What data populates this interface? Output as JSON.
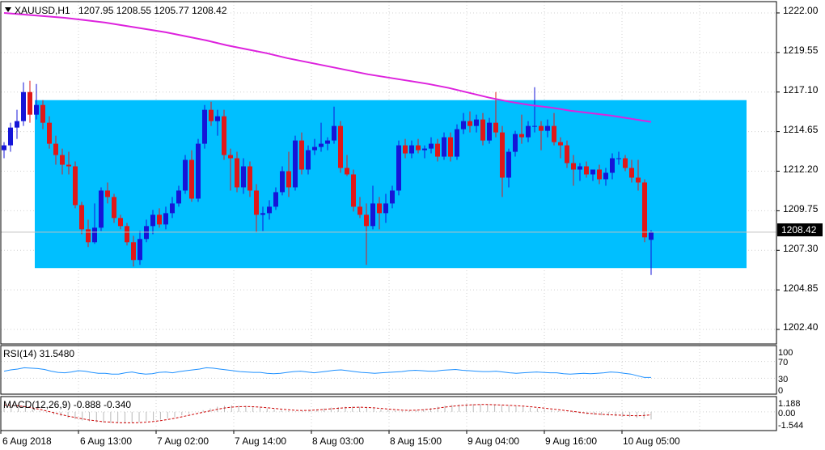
{
  "header": {
    "symbol": "XAUUSD,H1",
    "ohlc": "1207.95 1208.55 1205.77 1208.42"
  },
  "price_axis": {
    "labels": [
      "1222.00",
      "1219.55",
      "1217.10",
      "1214.65",
      "1212.20",
      "1209.75",
      "1207.30",
      "1204.85",
      "1202.40"
    ],
    "current_price_label": "1208.42"
  },
  "time_axis": {
    "labels": [
      "6 Aug 2018",
      "6 Aug 13:00",
      "7 Aug 02:00",
      "7 Aug 14:00",
      "8 Aug 03:00",
      "8 Aug 15:00",
      "9 Aug 04:00",
      "9 Aug 16:00",
      "10 Aug 05:00"
    ]
  },
  "rsi": {
    "title": "RSI(14) 31.5480",
    "levels": [
      "100",
      "70",
      "30",
      "0"
    ]
  },
  "macd": {
    "title": "MACD(12,26,9) -0.888 -0.340",
    "levels": [
      "1.188",
      "0.00",
      "-1.544"
    ]
  },
  "colors": {
    "bull": "#1515d8",
    "bear": "#e01818",
    "sma": "#dd22dd",
    "range_box": "#00bfff",
    "indicator_line": "#1e90ff",
    "macd_signal": "#cc0000",
    "grid": "#d0d0d0"
  },
  "chart_data": [
    {
      "type": "candlestick",
      "symbol": "XAUUSD",
      "timeframe": "H1",
      "y_range": [
        1201.5,
        1222.7
      ],
      "candles": [
        {
          "o": 1213.5,
          "h": 1214.0,
          "l": 1213.0,
          "c": 1213.8
        },
        {
          "o": 1213.8,
          "h": 1215.2,
          "l": 1213.4,
          "c": 1214.9
        },
        {
          "o": 1214.9,
          "h": 1216.0,
          "l": 1214.2,
          "c": 1215.3
        },
        {
          "o": 1215.3,
          "h": 1217.7,
          "l": 1215.0,
          "c": 1217.1
        },
        {
          "o": 1217.1,
          "h": 1217.8,
          "l": 1215.2,
          "c": 1215.7
        },
        {
          "o": 1215.7,
          "h": 1217.6,
          "l": 1215.4,
          "c": 1216.3
        },
        {
          "o": 1216.3,
          "h": 1216.6,
          "l": 1214.8,
          "c": 1215.2
        },
        {
          "o": 1215.2,
          "h": 1215.6,
          "l": 1213.6,
          "c": 1213.9
        },
        {
          "o": 1213.9,
          "h": 1214.4,
          "l": 1212.6,
          "c": 1213.2
        },
        {
          "o": 1213.2,
          "h": 1213.6,
          "l": 1212.0,
          "c": 1212.6
        },
        {
          "o": 1212.6,
          "h": 1213.4,
          "l": 1212.0,
          "c": 1212.5
        },
        {
          "o": 1212.5,
          "h": 1212.8,
          "l": 1209.9,
          "c": 1210.1
        },
        {
          "o": 1210.1,
          "h": 1210.3,
          "l": 1208.3,
          "c": 1208.6
        },
        {
          "o": 1208.6,
          "h": 1209.2,
          "l": 1207.5,
          "c": 1207.8
        },
        {
          "o": 1207.8,
          "h": 1210.2,
          "l": 1207.7,
          "c": 1208.7
        },
        {
          "o": 1208.7,
          "h": 1211.2,
          "l": 1208.5,
          "c": 1211.0
        },
        {
          "o": 1211.0,
          "h": 1211.5,
          "l": 1210.2,
          "c": 1210.6
        },
        {
          "o": 1210.6,
          "h": 1210.8,
          "l": 1209.0,
          "c": 1209.3
        },
        {
          "o": 1209.3,
          "h": 1209.5,
          "l": 1208.6,
          "c": 1208.8
        },
        {
          "o": 1208.8,
          "h": 1209.0,
          "l": 1207.6,
          "c": 1207.8
        },
        {
          "o": 1207.8,
          "h": 1208.2,
          "l": 1206.3,
          "c": 1206.7
        },
        {
          "o": 1206.7,
          "h": 1208.5,
          "l": 1206.4,
          "c": 1208.0
        },
        {
          "o": 1208.0,
          "h": 1209.2,
          "l": 1207.8,
          "c": 1208.8
        },
        {
          "o": 1208.8,
          "h": 1209.8,
          "l": 1208.3,
          "c": 1209.5
        },
        {
          "o": 1209.5,
          "h": 1209.9,
          "l": 1208.7,
          "c": 1208.9
        },
        {
          "o": 1208.9,
          "h": 1210.0,
          "l": 1208.6,
          "c": 1209.6
        },
        {
          "o": 1209.6,
          "h": 1210.6,
          "l": 1209.3,
          "c": 1210.2
        },
        {
          "o": 1210.2,
          "h": 1211.3,
          "l": 1210.0,
          "c": 1211.0
        },
        {
          "o": 1211.0,
          "h": 1213.2,
          "l": 1210.8,
          "c": 1212.9
        },
        {
          "o": 1212.9,
          "h": 1213.5,
          "l": 1210.3,
          "c": 1210.5
        },
        {
          "o": 1210.5,
          "h": 1214.2,
          "l": 1210.3,
          "c": 1213.9
        },
        {
          "o": 1213.9,
          "h": 1216.3,
          "l": 1213.6,
          "c": 1216.0
        },
        {
          "o": 1216.0,
          "h": 1216.5,
          "l": 1215.0,
          "c": 1215.3
        },
        {
          "o": 1215.3,
          "h": 1216.0,
          "l": 1214.4,
          "c": 1215.6
        },
        {
          "o": 1215.6,
          "h": 1216.0,
          "l": 1212.9,
          "c": 1213.2
        },
        {
          "o": 1213.2,
          "h": 1213.6,
          "l": 1211.0,
          "c": 1213.0
        },
        {
          "o": 1213.0,
          "h": 1213.4,
          "l": 1210.9,
          "c": 1211.2
        },
        {
          "o": 1211.2,
          "h": 1213.0,
          "l": 1210.8,
          "c": 1212.5
        },
        {
          "o": 1212.5,
          "h": 1212.8,
          "l": 1210.6,
          "c": 1211.0
        },
        {
          "o": 1211.0,
          "h": 1211.4,
          "l": 1208.4,
          "c": 1209.5
        },
        {
          "o": 1209.5,
          "h": 1210.0,
          "l": 1208.5,
          "c": 1209.6
        },
        {
          "o": 1209.6,
          "h": 1210.4,
          "l": 1209.2,
          "c": 1210.0
        },
        {
          "o": 1210.0,
          "h": 1211.2,
          "l": 1209.8,
          "c": 1210.9
        },
        {
          "o": 1210.9,
          "h": 1212.5,
          "l": 1210.7,
          "c": 1212.2
        },
        {
          "o": 1212.2,
          "h": 1213.4,
          "l": 1210.6,
          "c": 1211.2
        },
        {
          "o": 1211.2,
          "h": 1214.4,
          "l": 1211.0,
          "c": 1214.1
        },
        {
          "o": 1214.1,
          "h": 1214.6,
          "l": 1212.0,
          "c": 1212.3
        },
        {
          "o": 1212.3,
          "h": 1213.8,
          "l": 1212.0,
          "c": 1213.5
        },
        {
          "o": 1213.5,
          "h": 1214.2,
          "l": 1213.2,
          "c": 1213.7
        },
        {
          "o": 1213.7,
          "h": 1215.2,
          "l": 1213.4,
          "c": 1213.9
        },
        {
          "o": 1213.9,
          "h": 1214.3,
          "l": 1213.5,
          "c": 1214.1
        },
        {
          "o": 1214.1,
          "h": 1216.2,
          "l": 1213.9,
          "c": 1215.0
        },
        {
          "o": 1215.0,
          "h": 1215.3,
          "l": 1212.1,
          "c": 1212.4
        },
        {
          "o": 1212.4,
          "h": 1213.2,
          "l": 1211.9,
          "c": 1212.0
        },
        {
          "o": 1212.0,
          "h": 1212.3,
          "l": 1209.7,
          "c": 1210.0
        },
        {
          "o": 1210.0,
          "h": 1210.6,
          "l": 1209.3,
          "c": 1209.5
        },
        {
          "o": 1209.5,
          "h": 1210.2,
          "l": 1206.4,
          "c": 1208.8
        },
        {
          "o": 1208.8,
          "h": 1211.3,
          "l": 1208.6,
          "c": 1210.2
        },
        {
          "o": 1210.2,
          "h": 1210.6,
          "l": 1208.6,
          "c": 1209.6
        },
        {
          "o": 1209.6,
          "h": 1210.8,
          "l": 1209.0,
          "c": 1210.2
        },
        {
          "o": 1210.2,
          "h": 1211.3,
          "l": 1209.9,
          "c": 1211.0
        },
        {
          "o": 1211.0,
          "h": 1214.1,
          "l": 1210.7,
          "c": 1213.8
        },
        {
          "o": 1213.8,
          "h": 1214.2,
          "l": 1213.0,
          "c": 1213.3
        },
        {
          "o": 1213.3,
          "h": 1214.1,
          "l": 1213.0,
          "c": 1213.8
        },
        {
          "o": 1213.8,
          "h": 1214.2,
          "l": 1213.3,
          "c": 1213.5
        },
        {
          "o": 1213.5,
          "h": 1213.8,
          "l": 1213.0,
          "c": 1213.6
        },
        {
          "o": 1213.6,
          "h": 1214.3,
          "l": 1213.3,
          "c": 1213.9
        },
        {
          "o": 1213.9,
          "h": 1214.2,
          "l": 1212.8,
          "c": 1213.1
        },
        {
          "o": 1213.1,
          "h": 1214.6,
          "l": 1212.9,
          "c": 1214.3
        },
        {
          "o": 1214.3,
          "h": 1214.6,
          "l": 1212.8,
          "c": 1213.1
        },
        {
          "o": 1213.1,
          "h": 1215.1,
          "l": 1212.9,
          "c": 1214.8
        },
        {
          "o": 1214.8,
          "h": 1215.8,
          "l": 1214.5,
          "c": 1215.3
        },
        {
          "o": 1215.3,
          "h": 1215.9,
          "l": 1214.6,
          "c": 1215.0
        },
        {
          "o": 1215.0,
          "h": 1215.7,
          "l": 1214.6,
          "c": 1215.4
        },
        {
          "o": 1215.4,
          "h": 1215.8,
          "l": 1213.8,
          "c": 1214.1
        },
        {
          "o": 1214.1,
          "h": 1215.5,
          "l": 1213.9,
          "c": 1215.2
        },
        {
          "o": 1215.2,
          "h": 1217.1,
          "l": 1214.3,
          "c": 1214.6
        },
        {
          "o": 1214.6,
          "h": 1215.0,
          "l": 1210.6,
          "c": 1211.8
        },
        {
          "o": 1211.8,
          "h": 1213.6,
          "l": 1211.2,
          "c": 1213.4
        },
        {
          "o": 1213.4,
          "h": 1214.7,
          "l": 1213.1,
          "c": 1214.5
        },
        {
          "o": 1214.5,
          "h": 1215.7,
          "l": 1213.9,
          "c": 1214.3
        },
        {
          "o": 1214.3,
          "h": 1215.3,
          "l": 1214.0,
          "c": 1215.0
        },
        {
          "o": 1215.0,
          "h": 1217.4,
          "l": 1214.6,
          "c": 1215.0
        },
        {
          "o": 1215.0,
          "h": 1215.3,
          "l": 1213.5,
          "c": 1214.7
        },
        {
          "o": 1214.7,
          "h": 1215.4,
          "l": 1214.3,
          "c": 1215.0
        },
        {
          "o": 1215.0,
          "h": 1215.8,
          "l": 1213.8,
          "c": 1214.0
        },
        {
          "o": 1214.0,
          "h": 1214.3,
          "l": 1213.0,
          "c": 1213.8
        },
        {
          "o": 1213.8,
          "h": 1214.1,
          "l": 1212.4,
          "c": 1212.7
        },
        {
          "o": 1212.7,
          "h": 1213.2,
          "l": 1211.3,
          "c": 1212.3
        },
        {
          "o": 1212.3,
          "h": 1212.7,
          "l": 1211.6,
          "c": 1212.5
        },
        {
          "o": 1212.5,
          "h": 1212.8,
          "l": 1211.8,
          "c": 1212.0
        },
        {
          "o": 1212.0,
          "h": 1212.3,
          "l": 1211.6,
          "c": 1212.3
        },
        {
          "o": 1212.3,
          "h": 1212.6,
          "l": 1211.4,
          "c": 1211.7
        },
        {
          "o": 1211.7,
          "h": 1212.4,
          "l": 1211.3,
          "c": 1212.1
        },
        {
          "o": 1212.1,
          "h": 1213.3,
          "l": 1211.7,
          "c": 1213.0
        },
        {
          "o": 1213.0,
          "h": 1213.4,
          "l": 1212.6,
          "c": 1213.0
        },
        {
          "o": 1213.0,
          "h": 1213.2,
          "l": 1212.2,
          "c": 1212.4
        },
        {
          "o": 1212.4,
          "h": 1212.9,
          "l": 1211.5,
          "c": 1211.8
        },
        {
          "o": 1211.8,
          "h": 1212.9,
          "l": 1211.0,
          "c": 1211.5
        },
        {
          "o": 1211.5,
          "h": 1211.7,
          "l": 1207.8,
          "c": 1208.1
        },
        {
          "o": 1207.95,
          "h": 1208.55,
          "l": 1205.77,
          "c": 1208.42
        }
      ],
      "sma_line": [
        1222.0,
        1221.9,
        1221.8,
        1221.7,
        1221.55,
        1221.4,
        1221.2,
        1221.0,
        1220.8,
        1220.55,
        1220.3,
        1220.0,
        1219.75,
        1219.5,
        1219.2,
        1218.95,
        1218.7,
        1218.45,
        1218.2,
        1218.0,
        1217.8,
        1217.6,
        1217.35,
        1217.05,
        1216.75,
        1216.5,
        1216.3,
        1216.15,
        1215.95,
        1215.8,
        1215.65,
        1215.45,
        1215.25
      ],
      "range_box": {
        "top": 1216.6,
        "bottom": 1206.2
      },
      "current_price": 1208.42
    },
    {
      "type": "line",
      "name": "RSI(14)",
      "value": 31.548,
      "ylim": [
        0,
        100
      ],
      "levels": [
        100,
        70,
        30,
        0
      ],
      "values": [
        47,
        50,
        52,
        55,
        54,
        53,
        51,
        47,
        44,
        43,
        45,
        48,
        47,
        44,
        42,
        42,
        40,
        40,
        43,
        45,
        42,
        40,
        41,
        44,
        45,
        43,
        46,
        48,
        50,
        52,
        55,
        54,
        52,
        50,
        48,
        46,
        45,
        44,
        44,
        42,
        41,
        42,
        44,
        46,
        47,
        45,
        43,
        45,
        47,
        49,
        50,
        48,
        46,
        44,
        43,
        42,
        43,
        44,
        45,
        46,
        48,
        49,
        48,
        47,
        47,
        49,
        50,
        51,
        49,
        48,
        47,
        46,
        46,
        47,
        45,
        43,
        42,
        43,
        44,
        45,
        44,
        43,
        43,
        41,
        40,
        41,
        42,
        41,
        42,
        43,
        45,
        44,
        42,
        40,
        36,
        32,
        32
      ]
    },
    {
      "type": "bar",
      "name": "MACD(12,26,9)",
      "main_value": -0.888,
      "signal_value": -0.34,
      "ylim": [
        -1.8,
        1.4
      ],
      "levels": [
        1.188,
        0.0,
        -1.544
      ],
      "histogram": [
        0.8,
        0.7,
        0.6,
        0.5,
        0.3,
        0.1,
        -0.1,
        -0.3,
        -0.5,
        -0.7,
        -0.85,
        -1.0,
        -1.1,
        -1.2,
        -1.25,
        -1.3,
        -1.3,
        -1.28,
        -1.25,
        -1.2,
        -1.1,
        -1.0,
        -0.9,
        -0.75,
        -0.6,
        -0.4,
        -0.2,
        0.0,
        0.2,
        0.4,
        0.6,
        0.7,
        0.75,
        0.72,
        0.7,
        0.6,
        0.5,
        0.4,
        0.3,
        0.2,
        0.1,
        0.05,
        0.1,
        0.2,
        0.3,
        0.4,
        0.5,
        0.55,
        0.6,
        0.62,
        0.58,
        0.5,
        0.4,
        0.3,
        0.2,
        0.15,
        0.1,
        0.12,
        0.18,
        0.3,
        0.45,
        0.6,
        0.72,
        0.8,
        0.85,
        0.88,
        0.9,
        0.88,
        0.85,
        0.8,
        0.75,
        0.7,
        0.65,
        0.6,
        0.5,
        0.4,
        0.3,
        0.2,
        0.1,
        0.0,
        -0.1,
        -0.2,
        -0.3,
        -0.35,
        -0.4,
        -0.45,
        -0.5,
        -0.55,
        -0.6,
        -0.7,
        -0.8,
        -0.888
      ],
      "signal": [
        0.8,
        0.75,
        0.7,
        0.6,
        0.45,
        0.3,
        0.1,
        -0.1,
        -0.3,
        -0.5,
        -0.65,
        -0.8,
        -0.95,
        -1.05,
        -1.15,
        -1.2,
        -1.25,
        -1.27,
        -1.27,
        -1.25,
        -1.2,
        -1.12,
        -1.02,
        -0.9,
        -0.75,
        -0.58,
        -0.4,
        -0.22,
        -0.05,
        0.12,
        0.3,
        0.45,
        0.55,
        0.6,
        0.62,
        0.6,
        0.55,
        0.48,
        0.4,
        0.32,
        0.24,
        0.18,
        0.16,
        0.18,
        0.22,
        0.28,
        0.36,
        0.42,
        0.48,
        0.52,
        0.54,
        0.52,
        0.47,
        0.4,
        0.33,
        0.26,
        0.2,
        0.18,
        0.2,
        0.25,
        0.33,
        0.43,
        0.55,
        0.65,
        0.73,
        0.79,
        0.83,
        0.85,
        0.85,
        0.83,
        0.8,
        0.76,
        0.72,
        0.67,
        0.6,
        0.52,
        0.43,
        0.34,
        0.25,
        0.15,
        0.05,
        -0.05,
        -0.15,
        -0.22,
        -0.28,
        -0.33,
        -0.37,
        -0.4,
        -0.43,
        -0.45,
        -0.42,
        -0.34
      ]
    }
  ]
}
